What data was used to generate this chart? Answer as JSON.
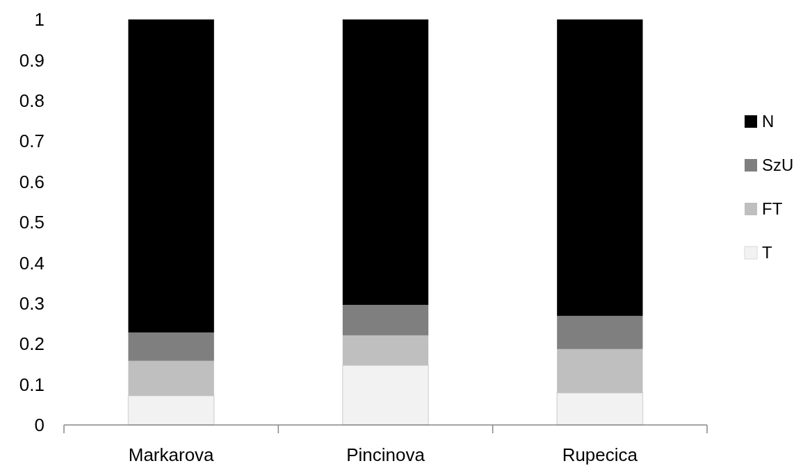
{
  "chart_data": {
    "type": "bar",
    "stacked": true,
    "categories": [
      "Markarova",
      "Pincinova",
      "Rupecica"
    ],
    "series": [
      {
        "name": "T",
        "color": "#f2f2f2",
        "values": [
          0.072,
          0.147,
          0.079
        ]
      },
      {
        "name": "FT",
        "color": "#bfbfbf",
        "values": [
          0.086,
          0.074,
          0.108
        ]
      },
      {
        "name": "SzU",
        "color": "#7f7f7f",
        "values": [
          0.07,
          0.075,
          0.082
        ]
      },
      {
        "name": "N",
        "color": "#000000",
        "values": [
          0.772,
          0.704,
          0.731
        ]
      }
    ],
    "ylim": [
      0,
      1
    ],
    "yticks": [
      0,
      0.1,
      0.2,
      0.3,
      0.4,
      0.5,
      0.6,
      0.7,
      0.8,
      0.9,
      1
    ],
    "legend": "right"
  }
}
